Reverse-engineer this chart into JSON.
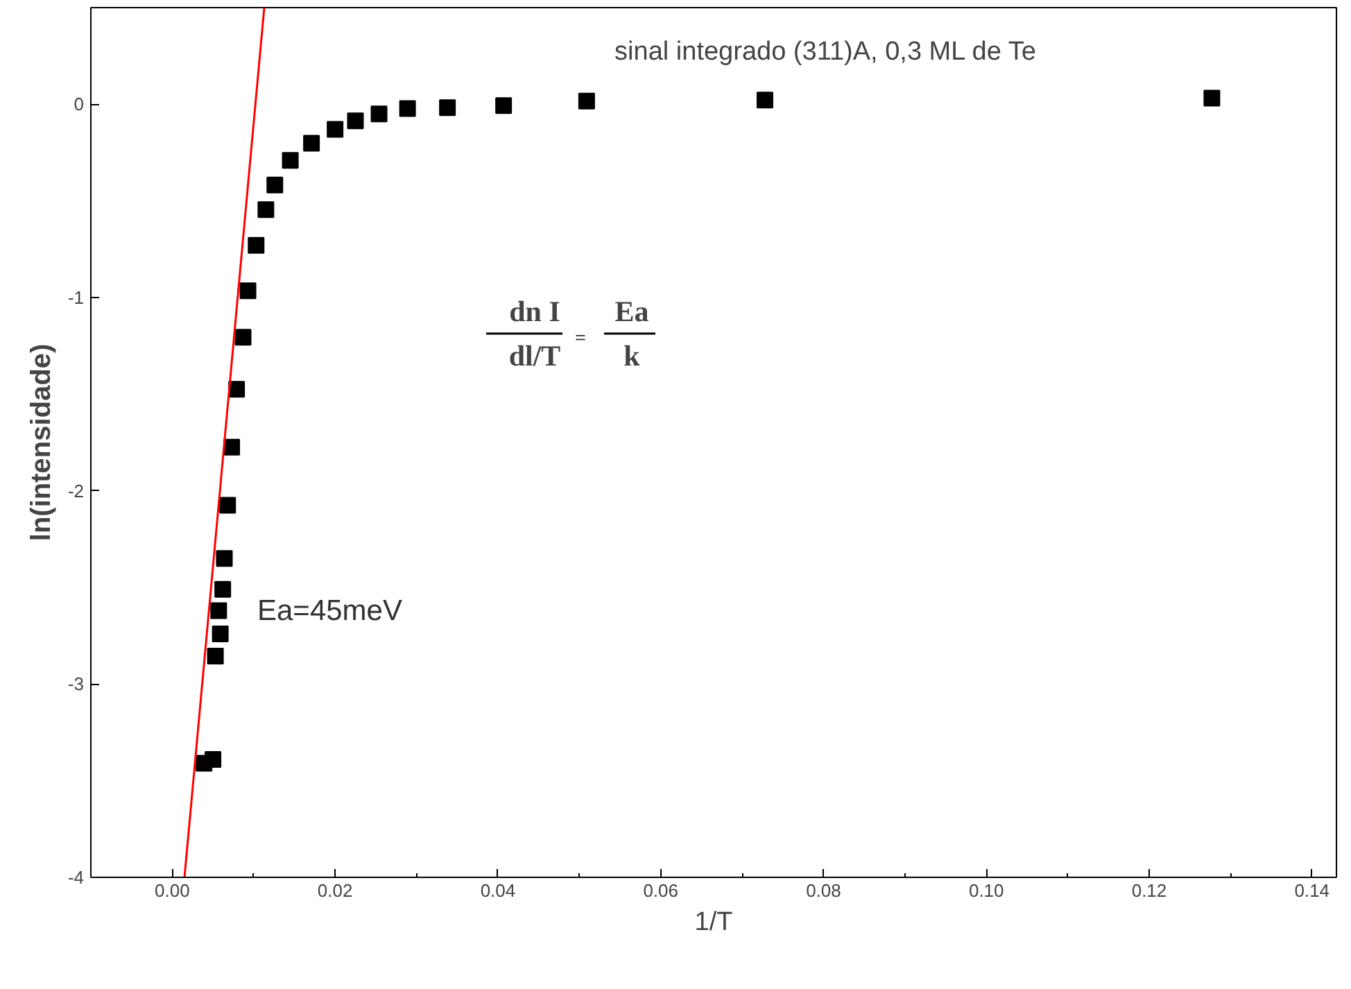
{
  "chart_data": {
    "type": "scatter",
    "title": "sinal integrado (311)A, 0,3 ML de Te",
    "xlabel": "1/T",
    "ylabel": "ln(intensidade)",
    "series": [
      {
        "color": "#000000",
        "marker": "square",
        "x": [
          0.0039,
          0.005,
          0.0053,
          0.0059,
          0.0057,
          0.0062,
          0.0064,
          0.0068,
          0.0073,
          0.0079,
          0.0087,
          0.0093,
          0.0103,
          0.0115,
          0.0126,
          0.0145,
          0.0171,
          0.02,
          0.0225,
          0.0254,
          0.0289,
          0.0338,
          0.0407,
          0.0509,
          0.0728,
          0.1277
        ],
        "values": [
          -3.41,
          -3.39,
          -2.855,
          -2.74,
          -2.62,
          -2.51,
          -2.35,
          -2.075,
          -1.774,
          -1.475,
          -1.205,
          -0.965,
          -0.73,
          -0.545,
          -0.418,
          -0.29,
          -0.202,
          -0.13,
          -0.086,
          -0.05,
          -0.022,
          -0.018,
          -0.007,
          0.016,
          0.022,
          0.032
        ]
      },
      {
        "type": "line",
        "color": "#ff0000",
        "line_style": "solid",
        "x": [
          0.0015,
          0.0113
        ],
        "values": [
          -4.0,
          0.5
        ]
      }
    ],
    "annotations": [
      "Ea=45meV",
      "dn I",
      "dl/T",
      "=",
      "Ea",
      "k"
    ],
    "xlim": [
      -0.01,
      0.143
    ],
    "ylim": [
      -4,
      0.5
    ],
    "xticks": [
      {
        "value": 0,
        "label": "0.00"
      },
      {
        "value": 0.02,
        "label": "0.02"
      },
      {
        "value": 0.04,
        "label": "0.04"
      },
      {
        "value": 0.06,
        "label": "0.06"
      },
      {
        "value": 0.08,
        "label": "0.08"
      },
      {
        "value": 0.1,
        "label": "0.10"
      },
      {
        "value": 0.12,
        "label": "0.12"
      },
      {
        "value": 0.14,
        "label": "0.14"
      }
    ],
    "yticks": [
      -4,
      -3,
      -2,
      -1,
      0
    ],
    "grid": false
  }
}
